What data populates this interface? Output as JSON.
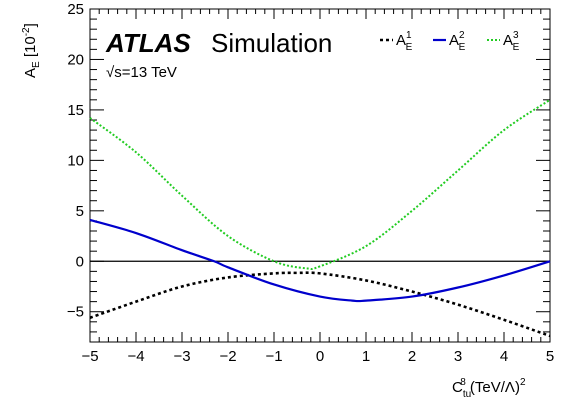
{
  "chart_data": {
    "type": "line",
    "experiment": "ATLAS",
    "label": "Simulation",
    "energy": "√s=13 TeV",
    "xlabel": {
      "base": "C",
      "sup": "8",
      "sub": "tu",
      "unit": " (TeV/Λ)",
      "unit_sup": "2"
    },
    "ylabel": {
      "base": "A",
      "sub": "E",
      "unit": " [10",
      "unit_sup": "-2",
      "close": "]"
    },
    "xlim": [
      -5,
      5
    ],
    "ylim": [
      -8,
      25
    ],
    "xticks": [
      -5,
      -4,
      -3,
      -2,
      -1,
      0,
      1,
      2,
      3,
      4,
      5
    ],
    "yticks": [
      -5,
      0,
      5,
      10,
      15,
      20,
      25
    ],
    "xtick_labels": [
      "−5",
      "−4",
      "−3",
      "−2",
      "−1",
      "0",
      "1",
      "2",
      "3",
      "4",
      "5"
    ],
    "ytick_labels": [
      "−5",
      "0",
      "5",
      "10",
      "15",
      "20",
      "25"
    ],
    "zero_line": true,
    "grid": false,
    "legend_position": "top-right",
    "series": [
      {
        "name": {
          "base": "A",
          "sub": "E",
          "sup": "1"
        },
        "color": "#000000",
        "style": "dotted",
        "x": [
          -5,
          -4,
          -3,
          -2,
          -1,
          -0.5,
          0,
          1,
          2,
          3,
          4,
          5
        ],
        "y": [
          -5.6,
          -4.0,
          -2.5,
          -1.6,
          -1.2,
          -1.15,
          -1.2,
          -1.9,
          -3.0,
          -4.3,
          -5.8,
          -7.4
        ]
      },
      {
        "name": {
          "base": "A",
          "sub": "E",
          "sup": "2"
        },
        "color": "#0000cc",
        "style": "solid",
        "x": [
          -5,
          -4,
          -3,
          -2.3,
          -2,
          -1,
          0,
          0.7,
          1,
          2,
          3,
          4,
          5
        ],
        "y": [
          4.1,
          2.8,
          1.1,
          0.0,
          -0.6,
          -2.3,
          -3.5,
          -3.9,
          -3.9,
          -3.5,
          -2.6,
          -1.4,
          0.0
        ]
      },
      {
        "name": {
          "base": "A",
          "sub": "E",
          "sup": "3"
        },
        "color": "#22cc22",
        "style": "dotted",
        "x": [
          -5,
          -4,
          -3,
          -2,
          -1,
          -0.3,
          0,
          1,
          2,
          3,
          4,
          5
        ],
        "y": [
          14.2,
          10.8,
          6.5,
          2.5,
          0.0,
          -0.7,
          -0.5,
          1.5,
          5.0,
          9.0,
          13.0,
          16.0
        ]
      }
    ]
  }
}
